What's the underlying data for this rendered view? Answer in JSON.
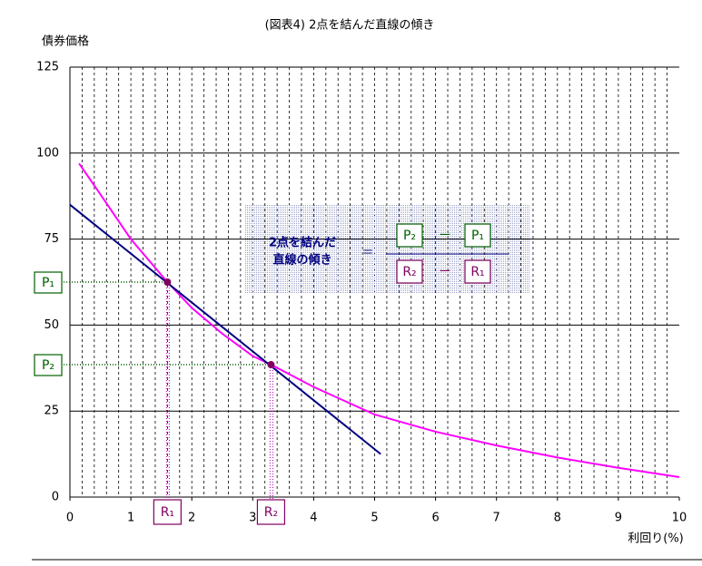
{
  "chart_data": {
    "type": "line",
    "title": "(図表4) 2点を結んだ直線の傾き",
    "ylabel": "債券価格",
    "xlabel": "利回り(%)",
    "xlim": [
      0,
      10
    ],
    "ylim": [
      0,
      125
    ],
    "xticks": [
      0,
      1,
      2,
      3,
      4,
      5,
      6,
      7,
      8,
      9,
      10
    ],
    "yticks": [
      0,
      25,
      50,
      75,
      100,
      125
    ],
    "grid": true,
    "x_minor_grid_per_unit": 5,
    "series": [
      {
        "color": "#ff00ff",
        "x": [
          0.15,
          0.5,
          1,
          1.6,
          2,
          2.5,
          3,
          3.3,
          4,
          5,
          6,
          7,
          8,
          9,
          10
        ],
        "values": [
          97,
          88,
          75,
          62.5,
          55,
          47.5,
          41,
          38.5,
          32,
          24,
          19,
          15,
          11.5,
          8.5,
          5.8
        ]
      },
      {
        "color": "#000080",
        "x": [
          0,
          5.1
        ],
        "values": [
          85,
          12.5
        ]
      }
    ],
    "points": {
      "color": "#800060",
      "x": [
        1.6,
        3.3
      ],
      "values": [
        62.5,
        38.5
      ]
    },
    "labels": {
      "p1": "P₁",
      "p2": "P₂",
      "r1": "R₁",
      "r2": "R₂"
    },
    "formula": {
      "line1": "2点を結んだ",
      "line2": "直線の傾き",
      "equals": "＝",
      "minus": "ー"
    }
  }
}
